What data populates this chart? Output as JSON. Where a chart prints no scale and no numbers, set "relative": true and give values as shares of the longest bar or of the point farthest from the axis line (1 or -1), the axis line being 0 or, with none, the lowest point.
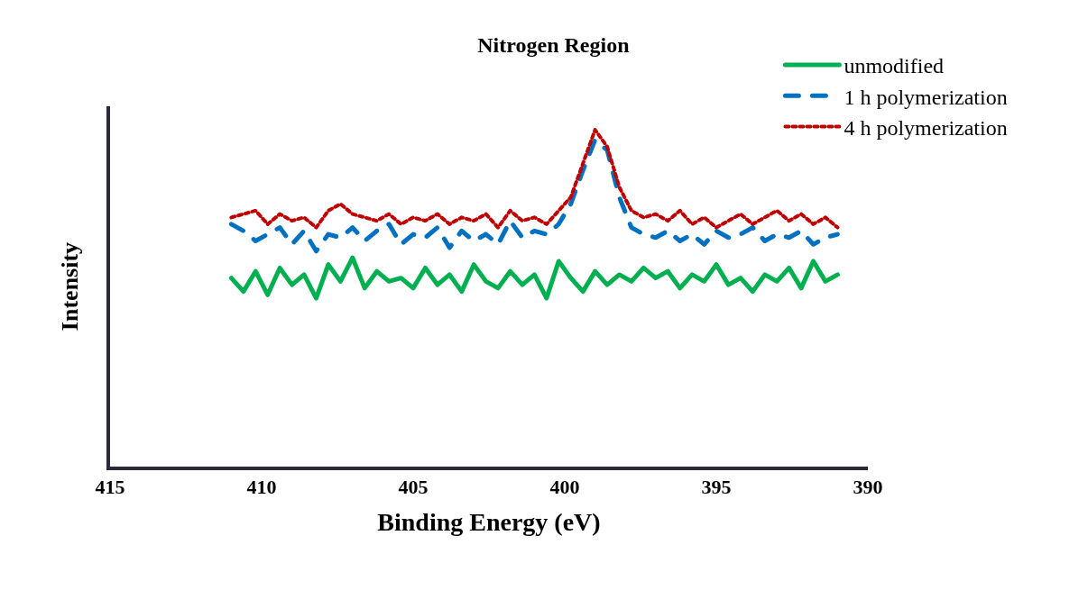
{
  "chart_data": {
    "type": "line",
    "title": "Nitrogen Region",
    "xlabel": "Binding Energy (eV)",
    "ylabel": "Intensity",
    "relative": true,
    "xlim": [
      415,
      390
    ],
    "xticks": [
      415,
      410,
      405,
      400,
      395,
      390
    ],
    "grid": false,
    "legend": "top right",
    "marker": "none",
    "x": [
      411.0,
      410.6,
      410.2,
      409.8,
      409.4,
      409.0,
      408.6,
      408.2,
      407.8,
      407.4,
      407.0,
      406.6,
      406.2,
      405.8,
      405.4,
      405.0,
      404.6,
      404.2,
      403.8,
      403.4,
      403.0,
      402.6,
      402.2,
      401.8,
      401.4,
      401.0,
      400.6,
      400.2,
      399.8,
      399.4,
      399.0,
      398.6,
      398.2,
      397.8,
      397.4,
      397.0,
      396.6,
      396.2,
      395.8,
      395.4,
      395.0,
      394.6,
      394.2,
      393.8,
      393.4,
      393.0,
      392.6,
      392.2,
      391.8,
      391.4,
      391.0
    ],
    "series": [
      {
        "name": "unmodified",
        "color": "#00b050",
        "line_style": "solid",
        "values": [
          0.56,
          0.52,
          0.58,
          0.51,
          0.59,
          0.54,
          0.57,
          0.5,
          0.6,
          0.55,
          0.62,
          0.53,
          0.58,
          0.55,
          0.56,
          0.53,
          0.59,
          0.54,
          0.57,
          0.52,
          0.6,
          0.55,
          0.53,
          0.58,
          0.54,
          0.57,
          0.5,
          0.61,
          0.56,
          0.52,
          0.58,
          0.54,
          0.57,
          0.55,
          0.59,
          0.56,
          0.58,
          0.53,
          0.57,
          0.55,
          0.6,
          0.54,
          0.56,
          0.52,
          0.57,
          0.55,
          0.59,
          0.53,
          0.61,
          0.55,
          0.57
        ]
      },
      {
        "name": "1 h polymerization",
        "color": "#0070c0",
        "line_style": "dashed",
        "values": [
          0.72,
          0.7,
          0.67,
          0.69,
          0.71,
          0.66,
          0.7,
          0.64,
          0.69,
          0.68,
          0.71,
          0.67,
          0.7,
          0.72,
          0.66,
          0.69,
          0.68,
          0.71,
          0.65,
          0.7,
          0.67,
          0.69,
          0.66,
          0.73,
          0.68,
          0.7,
          0.69,
          0.72,
          0.78,
          0.88,
          0.97,
          0.94,
          0.8,
          0.71,
          0.69,
          0.68,
          0.7,
          0.67,
          0.69,
          0.66,
          0.7,
          0.68,
          0.69,
          0.71,
          0.67,
          0.69,
          0.68,
          0.7,
          0.66,
          0.68,
          0.69
        ]
      },
      {
        "name": "4 h polymerization",
        "color": "#c00000",
        "line_style": "dotted",
        "values": [
          0.74,
          0.75,
          0.76,
          0.72,
          0.75,
          0.73,
          0.74,
          0.71,
          0.76,
          0.78,
          0.75,
          0.74,
          0.73,
          0.75,
          0.72,
          0.74,
          0.73,
          0.75,
          0.72,
          0.74,
          0.73,
          0.75,
          0.71,
          0.76,
          0.73,
          0.74,
          0.72,
          0.76,
          0.8,
          0.9,
          1.0,
          0.95,
          0.83,
          0.76,
          0.74,
          0.75,
          0.73,
          0.76,
          0.72,
          0.74,
          0.71,
          0.73,
          0.75,
          0.72,
          0.74,
          0.76,
          0.73,
          0.75,
          0.72,
          0.74,
          0.71
        ]
      }
    ]
  }
}
